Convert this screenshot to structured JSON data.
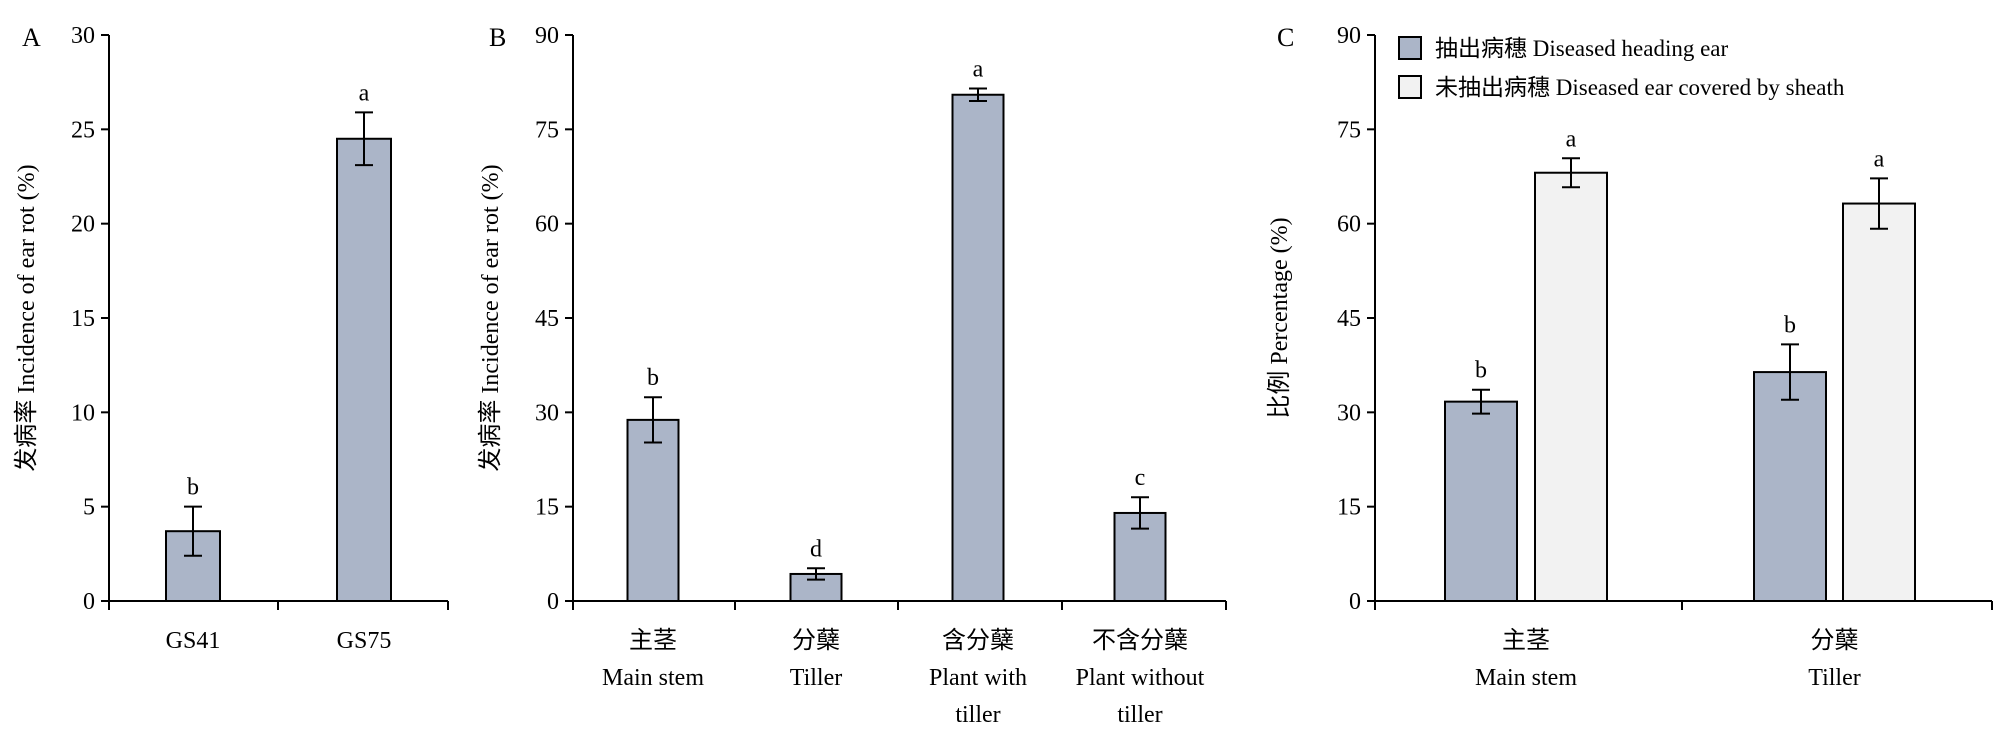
{
  "chart_data": [
    {
      "type": "bar",
      "panel": "A",
      "ylabel": "发病率 Incidence of ear rot (%)",
      "xlabel": "",
      "ylim": [
        0,
        30
      ],
      "yticks": [
        0,
        5,
        10,
        15,
        20,
        25,
        30
      ],
      "grid": false,
      "categories": [
        [
          "GS41"
        ],
        [
          "GS75"
        ]
      ],
      "series": [
        {
          "values": [
            3.7,
            24.5
          ],
          "errors": [
            1.3,
            1.4
          ],
          "labels": [
            "b",
            "a"
          ],
          "color": "#abb5c8"
        }
      ]
    },
    {
      "type": "bar",
      "panel": "B",
      "ylabel": "发病率 Incidence of ear rot (%)",
      "xlabel": "",
      "ylim": [
        0,
        90
      ],
      "yticks": [
        0,
        15,
        30,
        45,
        60,
        75,
        90
      ],
      "grid": false,
      "categories": [
        [
          "主茎",
          "Main stem"
        ],
        [
          "分蘖",
          "Tiller"
        ],
        [
          "含分蘖",
          "Plant with",
          "tiller"
        ],
        [
          "不含分蘖",
          "Plant without",
          "tiller"
        ]
      ],
      "series": [
        {
          "values": [
            28.8,
            4.3,
            80.5,
            14.0
          ],
          "errors": [
            3.6,
            0.9,
            1.0,
            2.5
          ],
          "labels": [
            "b",
            "d",
            "a",
            "c"
          ],
          "color": "#abb5c8"
        }
      ]
    },
    {
      "type": "bar",
      "panel": "C",
      "ylabel": "比例 Percentage (%)",
      "xlabel": "",
      "ylim": [
        0,
        90
      ],
      "yticks": [
        0,
        15,
        30,
        45,
        60,
        75,
        90
      ],
      "grid": false,
      "legend": "top-left",
      "categories": [
        [
          "主茎",
          "Main stem"
        ],
        [
          "分蘖",
          "Tiller"
        ]
      ],
      "series": [
        {
          "name": "抽出病穗 Diseased heading ear",
          "values": [
            31.7,
            36.4
          ],
          "errors": [
            1.9,
            4.4
          ],
          "labels": [
            "b",
            "b"
          ],
          "color": "#abb5c8"
        },
        {
          "name": "未抽出病穗 Diseased ear covered by sheath",
          "values": [
            68.1,
            63.2
          ],
          "errors": [
            2.3,
            4.0
          ],
          "labels": [
            "a",
            "a"
          ],
          "color": "#f2f2f2"
        }
      ]
    }
  ]
}
